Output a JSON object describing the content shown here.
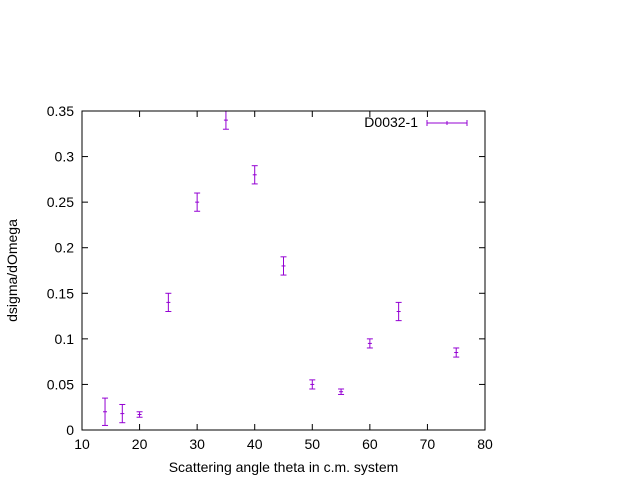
{
  "chart_data": {
    "type": "scatter",
    "xlabel": "Scattering angle theta in c.m. system",
    "ylabel": "dsigma/dOmega",
    "xlim": [
      10,
      80
    ],
    "ylim": [
      0,
      0.35
    ],
    "grid": false,
    "legend_position": "top-right",
    "x_ticks": [
      "10",
      "20",
      "30",
      "40",
      "50",
      "60",
      "70",
      "80"
    ],
    "y_ticks": [
      "0",
      "0.05",
      "0.1",
      "0.15",
      "0.2",
      "0.25",
      "0.3",
      "0.35"
    ],
    "series": [
      {
        "name": "D0032-1",
        "color": "#9400d3",
        "style": "points with x and y error bars",
        "points": [
          {
            "x": 14,
            "y": 0.02,
            "yerr": 0.015
          },
          {
            "x": 17,
            "y": 0.018,
            "yerr": 0.01
          },
          {
            "x": 20,
            "y": 0.017,
            "yerr": 0.003
          },
          {
            "x": 25,
            "y": 0.14,
            "yerr": 0.01
          },
          {
            "x": 30,
            "y": 0.25,
            "yerr": 0.01
          },
          {
            "x": 35,
            "y": 0.34,
            "yerr": 0.01
          },
          {
            "x": 40,
            "y": 0.28,
            "yerr": 0.01
          },
          {
            "x": 45,
            "y": 0.18,
            "yerr": 0.01
          },
          {
            "x": 50,
            "y": 0.05,
            "yerr": 0.005
          },
          {
            "x": 55,
            "y": 0.042,
            "yerr": 0.003
          },
          {
            "x": 60,
            "y": 0.095,
            "yerr": 0.005
          },
          {
            "x": 65,
            "y": 0.13,
            "yerr": 0.01
          },
          {
            "x": 75,
            "y": 0.085,
            "yerr": 0.005
          }
        ]
      }
    ]
  }
}
